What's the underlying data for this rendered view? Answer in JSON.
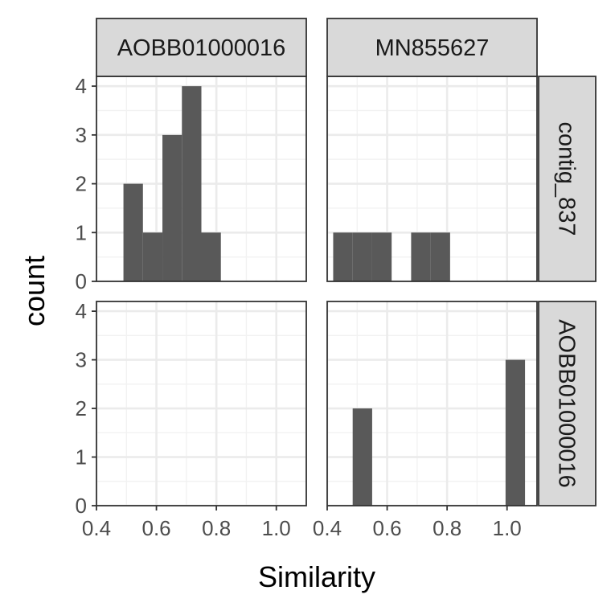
{
  "chart_data": {
    "type": "bar",
    "layout": "facet_grid",
    "xlabel": "Similarity",
    "ylabel": "count",
    "xlim": [
      0.4,
      1.1
    ],
    "ylim": [
      0,
      4.2
    ],
    "x_ticks": [
      "0.4",
      "0.6",
      "0.8",
      "1.0"
    ],
    "y_ticks": [
      "0",
      "1",
      "2",
      "3",
      "4"
    ],
    "grid": true,
    "bar_color": "#595959",
    "column_labels": [
      "AOBB01000016",
      "MN855627"
    ],
    "row_labels": [
      "contig_837",
      "AOBB01000016"
    ],
    "panels": [
      {
        "column": "AOBB01000016",
        "row": "contig_837",
        "bins": [
          {
            "x_start": 0.49,
            "x_end": 0.555,
            "count": 2
          },
          {
            "x_start": 0.555,
            "x_end": 0.62,
            "count": 1
          },
          {
            "x_start": 0.62,
            "x_end": 0.685,
            "count": 3
          },
          {
            "x_start": 0.685,
            "x_end": 0.75,
            "count": 4
          },
          {
            "x_start": 0.75,
            "x_end": 0.815,
            "count": 1
          }
        ]
      },
      {
        "column": "MN855627",
        "row": "contig_837",
        "bins": [
          {
            "x_start": 0.42,
            "x_end": 0.485,
            "count": 1
          },
          {
            "x_start": 0.485,
            "x_end": 0.55,
            "count": 1
          },
          {
            "x_start": 0.55,
            "x_end": 0.615,
            "count": 1
          },
          {
            "x_start": 0.68,
            "x_end": 0.745,
            "count": 1
          },
          {
            "x_start": 0.745,
            "x_end": 0.81,
            "count": 1
          }
        ]
      },
      {
        "column": "AOBB01000016",
        "row": "AOBB01000016",
        "bins": []
      },
      {
        "column": "MN855627",
        "row": "AOBB01000016",
        "bins": [
          {
            "x_start": 0.485,
            "x_end": 0.55,
            "count": 2
          },
          {
            "x_start": 0.995,
            "x_end": 1.06,
            "count": 3
          }
        ]
      }
    ]
  }
}
